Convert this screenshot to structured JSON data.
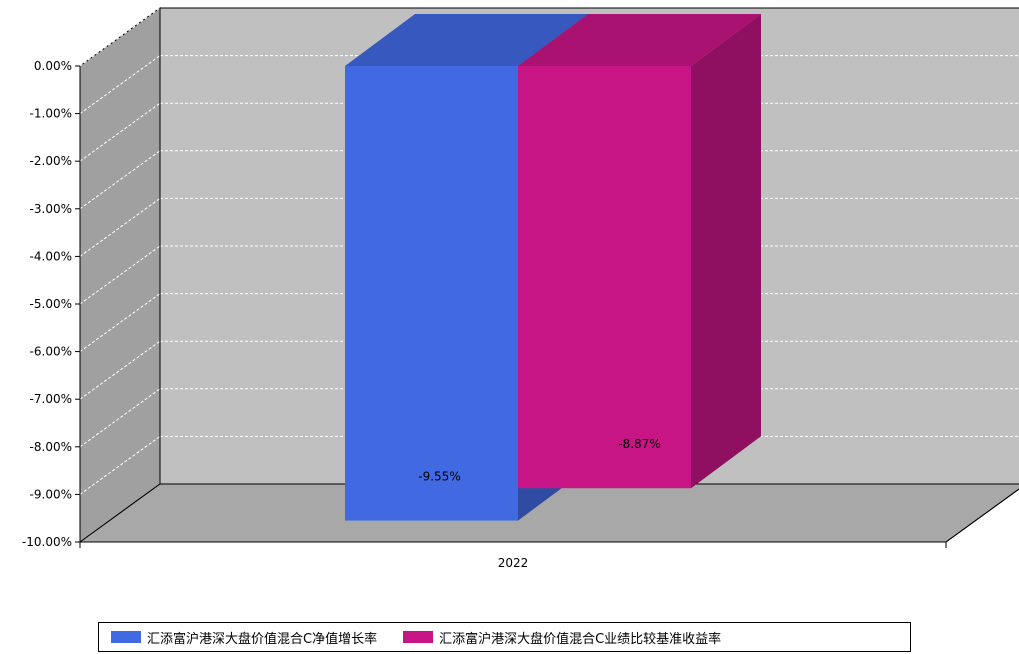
{
  "chart_data": {
    "type": "bar",
    "categories": [
      "2022"
    ],
    "series": [
      {
        "name": "汇添富沪港深大盘价值混合C净值增长率",
        "values": [
          -9.55
        ],
        "color": "#4169E1",
        "label": "-9.55%"
      },
      {
        "name": "汇添富沪港深大盘价值混合C业绩比较基准收益率",
        "values": [
          -8.87
        ],
        "color": "#C71585",
        "label": "-8.87%"
      }
    ],
    "yticks": [
      "0.00%",
      "-1.00%",
      "-2.00%",
      "-3.00%",
      "-4.00%",
      "-5.00%",
      "-6.00%",
      "-7.00%",
      "-8.00%",
      "-9.00%",
      "-10.00%"
    ],
    "ylim": [
      -10,
      0
    ],
    "grid": true,
    "legend_position": "bottom",
    "style": "3d"
  }
}
